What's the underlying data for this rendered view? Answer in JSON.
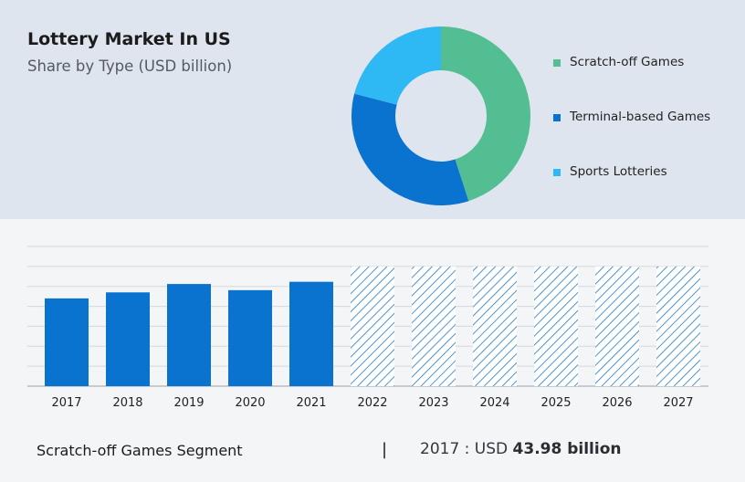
{
  "header": {
    "title": "Lottery Market In US",
    "subtitle": "Share by Type (USD billion)"
  },
  "footer": {
    "segment_label": "Scratch-off Games Segment",
    "divider": "|",
    "year_prefix": "2017 : USD ",
    "value_text": "43.98 billion"
  },
  "chart_data": [
    {
      "type": "pie",
      "variant": "donut",
      "title": "",
      "legend_position": "right",
      "series": [
        {
          "name": "Scratch-off Games",
          "value": 45,
          "color": "#52be92"
        },
        {
          "name": "Terminal-based Games",
          "value": 34,
          "color": "#0a73cf"
        },
        {
          "name": "Sports Lotteries",
          "value": 21,
          "color": "#2fb9f4"
        }
      ]
    },
    {
      "type": "bar",
      "title": "",
      "xlabel": "",
      "ylabel": "",
      "grid": true,
      "categories": [
        "2017",
        "2018",
        "2019",
        "2020",
        "2021",
        "2022",
        "2023",
        "2024",
        "2025",
        "2026",
        "2027"
      ],
      "values": [
        43.98,
        47.0,
        51.2,
        48.1,
        52.3,
        60,
        60,
        60,
        60,
        60,
        60
      ],
      "forecast_from_index": 5,
      "ylim": [
        0,
        70
      ],
      "bar_color": "#0a73cf",
      "forecast_hatch_color": "#2379c8"
    }
  ]
}
